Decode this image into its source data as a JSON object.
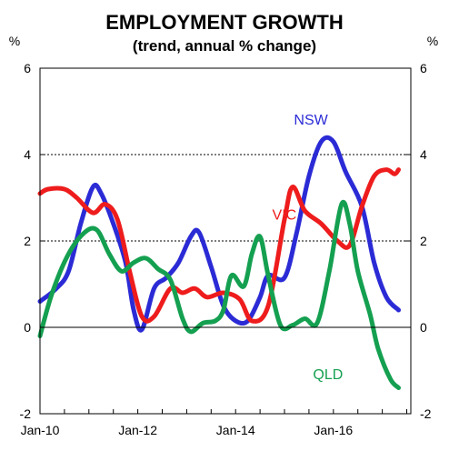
{
  "chart_data": {
    "type": "line",
    "title": "EMPLOYMENT GROWTH",
    "subtitle": "(trend, annual % change)",
    "ylabel_left": "%",
    "ylabel_right": "%",
    "ylim": [
      -2,
      6
    ],
    "yticks": [
      -2,
      0,
      2,
      4,
      6
    ],
    "gridlines_at": [
      2,
      4
    ],
    "x_start": "2010-01",
    "x_end": "2017-08",
    "xticks": [
      {
        "date": "2010-01",
        "label": "Jan-10"
      },
      {
        "date": "2012-01",
        "label": "Jan-12"
      },
      {
        "date": "2014-01",
        "label": "Jan-14"
      },
      {
        "date": "2016-01",
        "label": "Jan-16"
      }
    ],
    "series": [
      {
        "name": "NSW",
        "color": "#2b2bd6",
        "points": [
          [
            "2010-01",
            0.6
          ],
          [
            "2010-05",
            0.9
          ],
          [
            "2010-08",
            1.3
          ],
          [
            "2010-11",
            2.4
          ],
          [
            "2011-02",
            3.25
          ],
          [
            "2011-04",
            3.1
          ],
          [
            "2011-07",
            2.4
          ],
          [
            "2011-10",
            1.5
          ],
          [
            "2011-12",
            0.4
          ],
          [
            "2012-02",
            -0.05
          ],
          [
            "2012-05",
            0.9
          ],
          [
            "2012-08",
            1.15
          ],
          [
            "2012-11",
            1.5
          ],
          [
            "2013-02",
            2.1
          ],
          [
            "2013-04",
            2.2
          ],
          [
            "2013-07",
            1.4
          ],
          [
            "2013-10",
            0.5
          ],
          [
            "2014-01",
            0.15
          ],
          [
            "2014-04",
            0.15
          ],
          [
            "2014-07",
            0.7
          ],
          [
            "2014-09",
            1.2
          ],
          [
            "2015-01",
            1.15
          ],
          [
            "2015-04",
            2.2
          ],
          [
            "2015-07",
            3.5
          ],
          [
            "2015-10",
            4.3
          ],
          [
            "2016-01",
            4.3
          ],
          [
            "2016-04",
            3.6
          ],
          [
            "2016-08",
            2.8
          ],
          [
            "2016-11",
            1.5
          ],
          [
            "2017-02",
            0.7
          ],
          [
            "2017-05",
            0.4
          ]
        ]
      },
      {
        "name": "VIC",
        "color": "#ee1c1c",
        "points": [
          [
            "2010-01",
            3.1
          ],
          [
            "2010-03",
            3.2
          ],
          [
            "2010-07",
            3.2
          ],
          [
            "2010-10",
            3.0
          ],
          [
            "2011-02",
            2.65
          ],
          [
            "2011-05",
            2.85
          ],
          [
            "2011-08",
            2.5
          ],
          [
            "2011-11",
            1.3
          ],
          [
            "2012-02",
            0.25
          ],
          [
            "2012-05",
            0.25
          ],
          [
            "2012-09",
            0.9
          ],
          [
            "2012-12",
            0.8
          ],
          [
            "2013-03",
            0.9
          ],
          [
            "2013-06",
            0.7
          ],
          [
            "2013-10",
            0.8
          ],
          [
            "2014-02",
            0.65
          ],
          [
            "2014-05",
            0.15
          ],
          [
            "2014-09",
            0.5
          ],
          [
            "2015-01",
            2.5
          ],
          [
            "2015-03",
            3.25
          ],
          [
            "2015-06",
            2.7
          ],
          [
            "2015-10",
            2.4
          ],
          [
            "2016-02",
            2.0
          ],
          [
            "2016-05",
            1.9
          ],
          [
            "2016-08",
            2.8
          ],
          [
            "2016-11",
            3.5
          ],
          [
            "2017-02",
            3.65
          ],
          [
            "2017-04",
            3.55
          ],
          [
            "2017-05",
            3.65
          ]
        ]
      },
      {
        "name": "QLD",
        "color": "#14a050",
        "points": [
          [
            "2010-01",
            -0.2
          ],
          [
            "2010-04",
            0.8
          ],
          [
            "2010-08",
            1.7
          ],
          [
            "2010-12",
            2.2
          ],
          [
            "2011-03",
            2.25
          ],
          [
            "2011-06",
            1.7
          ],
          [
            "2011-09",
            1.3
          ],
          [
            "2011-12",
            1.5
          ],
          [
            "2012-03",
            1.6
          ],
          [
            "2012-06",
            1.35
          ],
          [
            "2012-09",
            1.1
          ],
          [
            "2012-12",
            0.2
          ],
          [
            "2013-02",
            -0.1
          ],
          [
            "2013-05",
            0.1
          ],
          [
            "2013-08",
            0.15
          ],
          [
            "2013-10",
            0.4
          ],
          [
            "2013-12",
            1.2
          ],
          [
            "2014-03",
            0.95
          ],
          [
            "2014-05",
            1.7
          ],
          [
            "2014-07",
            2.1
          ],
          [
            "2014-09",
            1.2
          ],
          [
            "2014-12",
            0.05
          ],
          [
            "2015-03",
            0.05
          ],
          [
            "2015-06",
            0.2
          ],
          [
            "2015-09",
            0.1
          ],
          [
            "2015-12",
            1.3
          ],
          [
            "2016-03",
            2.85
          ],
          [
            "2016-05",
            2.4
          ],
          [
            "2016-07",
            1.3
          ],
          [
            "2016-10",
            0.3
          ],
          [
            "2016-12",
            -0.5
          ],
          [
            "2017-03",
            -1.2
          ],
          [
            "2017-05",
            -1.4
          ]
        ]
      }
    ]
  }
}
